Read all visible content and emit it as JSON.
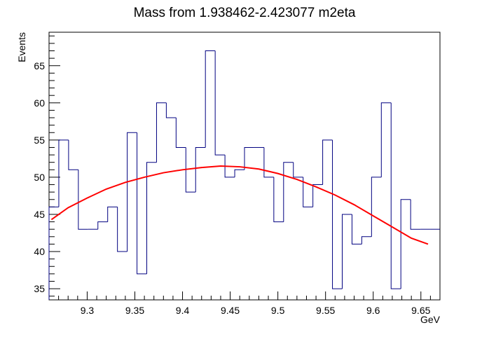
{
  "chart_data": {
    "type": "line",
    "title": "Mass from 1.938462-2.423077 m2eta",
    "xlabel": "GeV",
    "ylabel": "Events",
    "xlim": [
      9.26,
      9.67
    ],
    "ylim": [
      33.5,
      69.5
    ],
    "x_ticks": [
      9.3,
      9.35,
      9.4,
      9.45,
      9.5,
      9.55,
      9.6,
      9.65
    ],
    "x_tick_labels": [
      "9.3",
      "9.35",
      "9.4",
      "9.45",
      "9.5",
      "9.55",
      "9.6",
      "9.65"
    ],
    "y_ticks": [
      35,
      40,
      45,
      50,
      55,
      60,
      65
    ],
    "y_tick_labels": [
      "35",
      "40",
      "45",
      "50",
      "55",
      "60",
      "65"
    ],
    "grid": false,
    "series": [
      {
        "kind": "histogram",
        "color": "#000080",
        "bin_edges": [
          9.26,
          9.27025,
          9.2805,
          9.29075,
          9.301,
          9.31125,
          9.3215,
          9.33175,
          9.342,
          9.35225,
          9.3625,
          9.37275,
          9.383,
          9.39325,
          9.4035,
          9.41375,
          9.424,
          9.43425,
          9.4445,
          9.45475,
          9.465,
          9.47525,
          9.4855,
          9.49575,
          9.506,
          9.51625,
          9.5265,
          9.53675,
          9.547,
          9.55725,
          9.5675,
          9.57775,
          9.588,
          9.59825,
          9.6085,
          9.61875,
          9.629,
          9.63925,
          9.6495,
          9.65975,
          9.67
        ],
        "values": [
          46,
          55,
          51,
          43,
          43,
          44,
          46,
          40,
          56,
          37,
          52,
          60,
          58,
          54,
          48,
          54,
          67,
          53,
          50,
          51,
          54,
          54,
          50,
          44,
          52,
          50,
          46,
          49,
          55,
          35,
          45,
          41,
          42,
          50,
          60,
          35,
          47,
          43,
          43,
          43
        ]
      },
      {
        "kind": "fit",
        "color": "#ff0000",
        "x": [
          9.2625,
          9.28,
          9.3,
          9.32,
          9.34,
          9.36,
          9.38,
          9.4,
          9.42,
          9.44,
          9.46,
          9.48,
          9.5,
          9.52,
          9.54,
          9.56,
          9.58,
          9.6,
          9.62,
          9.64,
          9.6575
        ],
        "y": [
          44.3,
          45.9,
          47.2,
          48.4,
          49.3,
          50.0,
          50.6,
          51.0,
          51.3,
          51.5,
          51.4,
          51.1,
          50.5,
          49.7,
          48.7,
          47.6,
          46.3,
          44.8,
          43.3,
          41.8,
          41.0
        ]
      }
    ]
  }
}
